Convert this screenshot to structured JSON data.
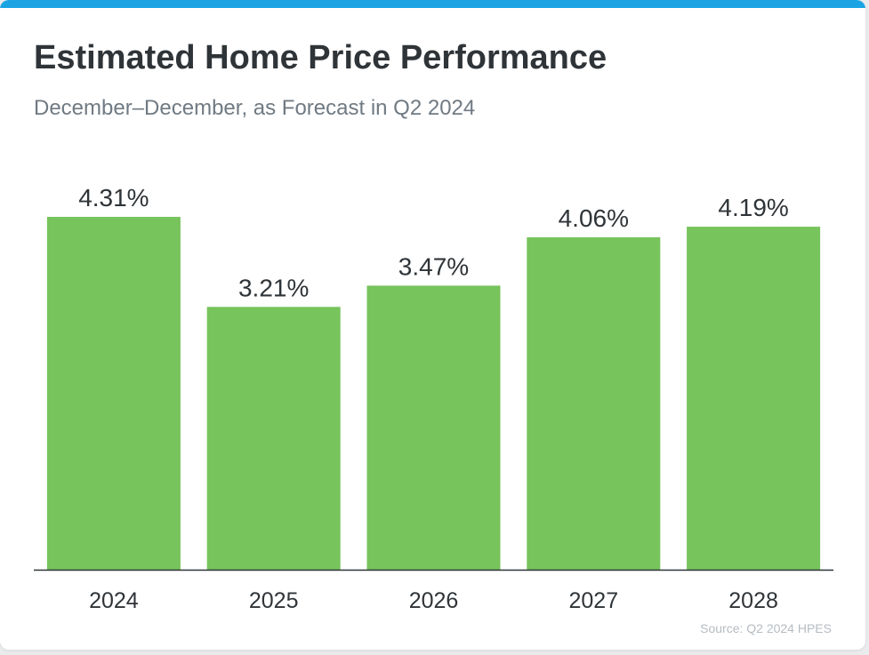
{
  "title": "Estimated Home Price Performance",
  "subtitle": "December–December, as Forecast in Q2 2024",
  "source": "Source: Q2 2024 HPES",
  "colors": {
    "bar": "#77c35c",
    "accent": "#1aa4e3",
    "axis": "#2f3438",
    "text": "#2f3438"
  },
  "chart_data": {
    "type": "bar",
    "title": "Estimated Home Price Performance",
    "subtitle": "December–December, as Forecast in Q2 2024",
    "categories": [
      "2024",
      "2025",
      "2026",
      "2027",
      "2028"
    ],
    "values": [
      4.31,
      3.21,
      3.47,
      4.06,
      4.19
    ],
    "value_labels": [
      "4.31%",
      "3.21%",
      "3.47%",
      "4.06%",
      "4.19%"
    ],
    "unit": "%",
    "xlabel": "",
    "ylabel": "",
    "ylim": [
      0,
      4.31
    ],
    "grid": false,
    "legend": "none"
  }
}
